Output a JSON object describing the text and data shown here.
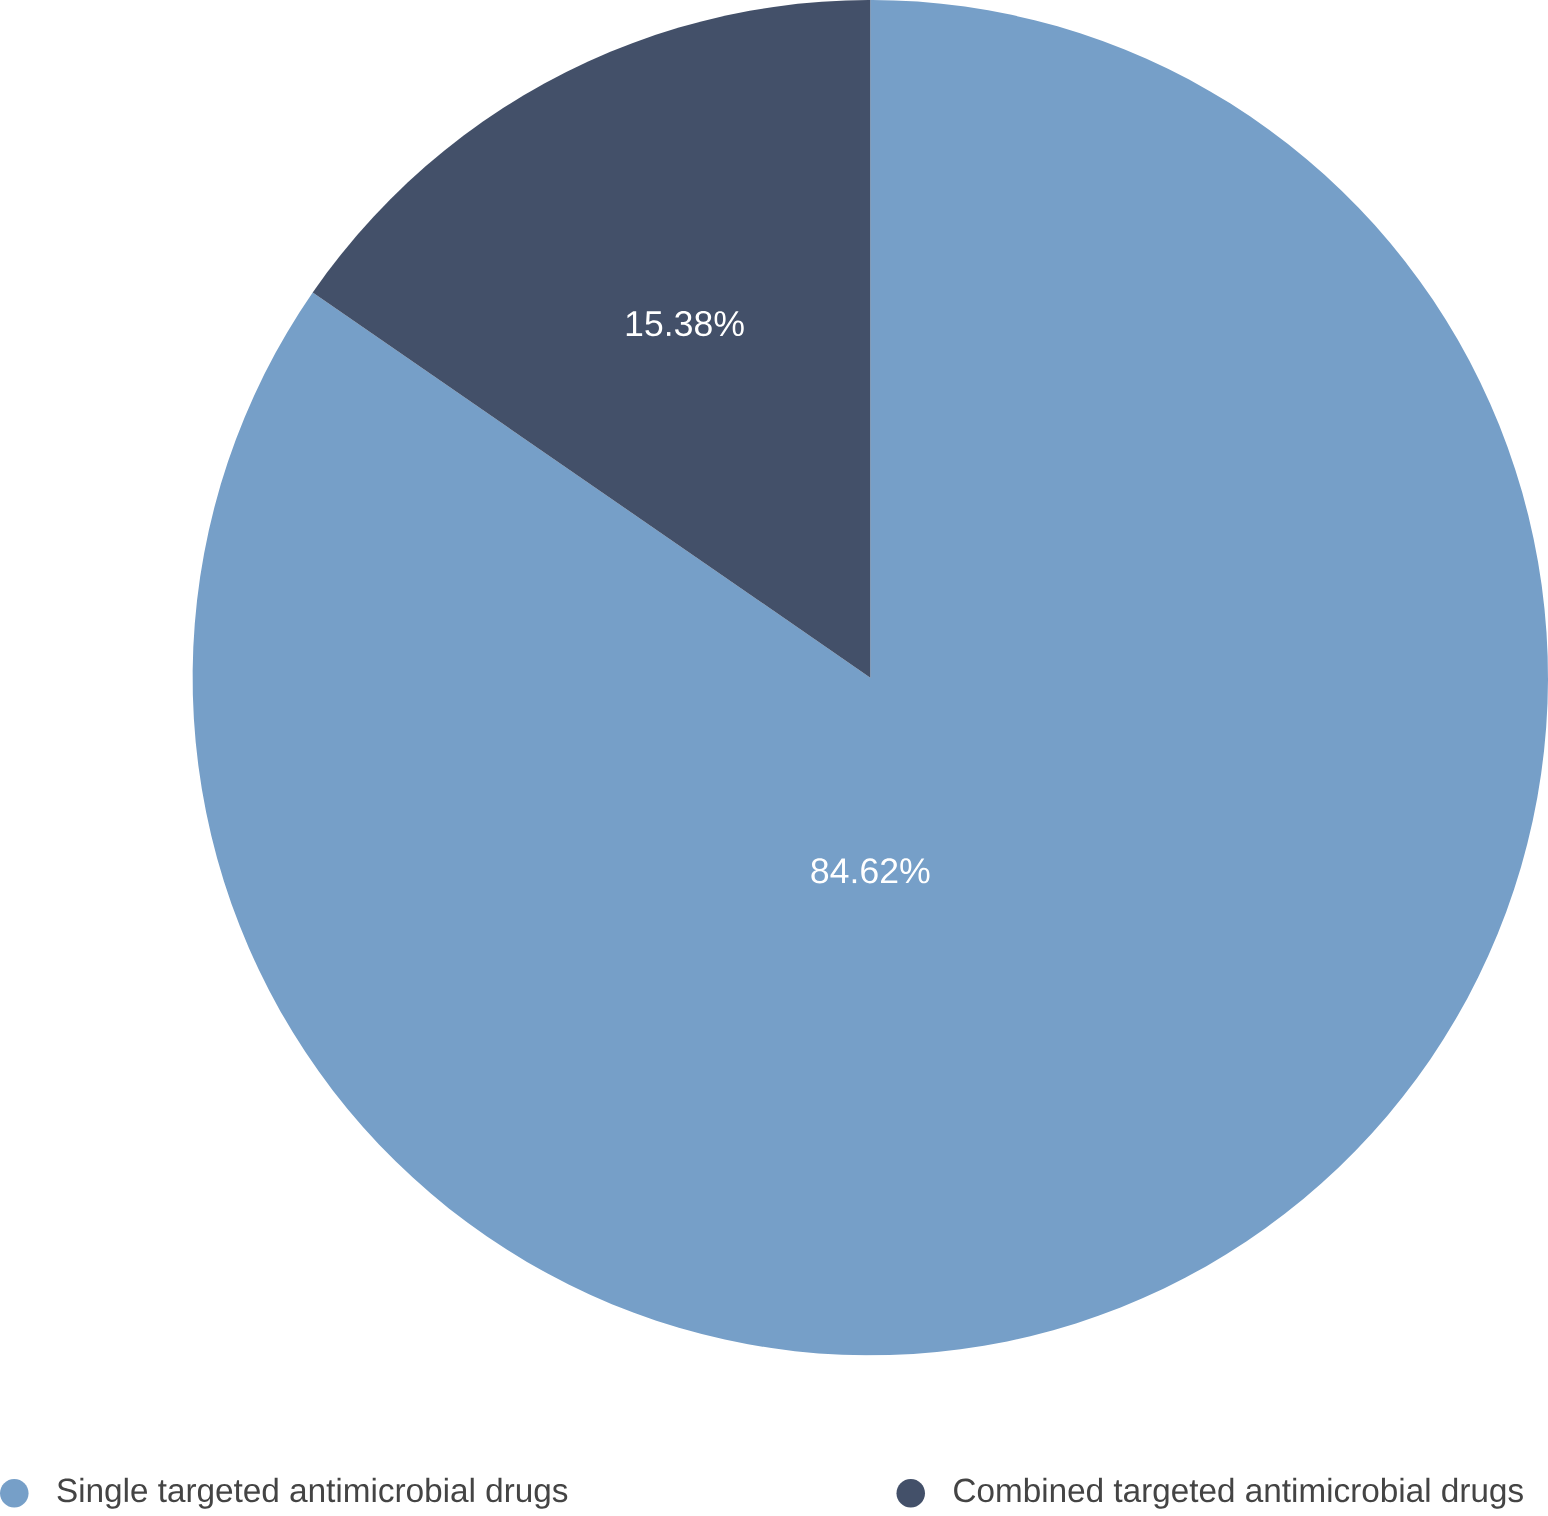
{
  "chart_data": {
    "type": "pie",
    "categories": [
      "Single targeted antimicrobial drugs",
      "Combined targeted antimicrobial drugs"
    ],
    "values": [
      84.62,
      15.38
    ],
    "colors": [
      "#769fc8",
      "#435069"
    ],
    "value_labels": [
      "84.62%",
      "15.38%"
    ],
    "legend": "bottom"
  }
}
